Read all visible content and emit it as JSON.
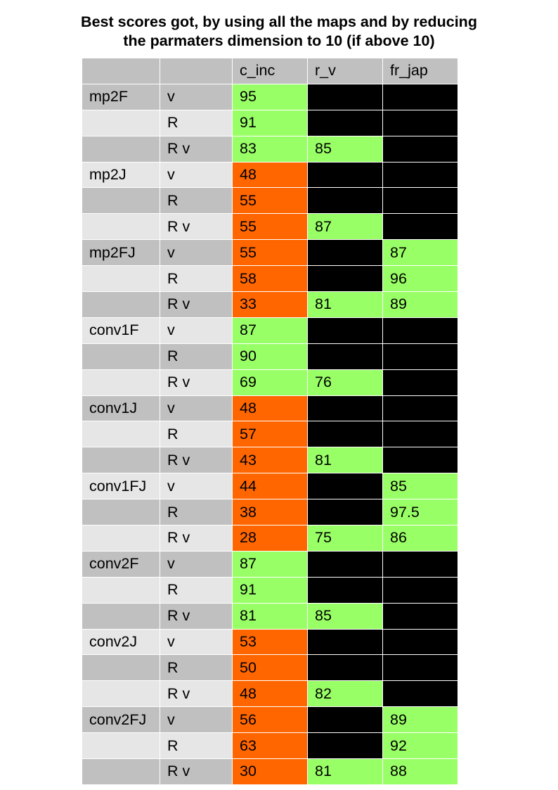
{
  "title": {
    "line1": "Best scores got, by using all the maps and by reducing",
    "line2": "the parmaters dimension to 10 (if above 10)"
  },
  "colors": {
    "header": "#c0c0c0",
    "row_dark": "#c0c0c0",
    "row_light": "#e6e6e6",
    "good": "#99ff66",
    "bad": "#ff6600",
    "na": "#000000"
  },
  "table": {
    "columns": [
      "",
      "",
      "c_inc",
      "r_v",
      "fr_jap"
    ],
    "rows": [
      {
        "model": "mp2F",
        "params": "v",
        "c_inc": {
          "value": "95",
          "color": "green"
        },
        "r_v": {
          "value": "",
          "color": "black"
        },
        "fr_jap": {
          "value": "",
          "color": "black"
        }
      },
      {
        "model": "",
        "params": "R",
        "c_inc": {
          "value": "91",
          "color": "green"
        },
        "r_v": {
          "value": "",
          "color": "black"
        },
        "fr_jap": {
          "value": "",
          "color": "black"
        }
      },
      {
        "model": "",
        "params": "R v",
        "c_inc": {
          "value": "83",
          "color": "green"
        },
        "r_v": {
          "value": "85",
          "color": "green"
        },
        "fr_jap": {
          "value": "",
          "color": "black"
        }
      },
      {
        "model": "mp2J",
        "params": "v",
        "c_inc": {
          "value": "48",
          "color": "orange"
        },
        "r_v": {
          "value": "",
          "color": "black"
        },
        "fr_jap": {
          "value": "",
          "color": "black"
        }
      },
      {
        "model": "",
        "params": "R",
        "c_inc": {
          "value": "55",
          "color": "orange"
        },
        "r_v": {
          "value": "",
          "color": "black"
        },
        "fr_jap": {
          "value": "",
          "color": "black"
        }
      },
      {
        "model": "",
        "params": "R v",
        "c_inc": {
          "value": "55",
          "color": "orange"
        },
        "r_v": {
          "value": "87",
          "color": "green"
        },
        "fr_jap": {
          "value": "",
          "color": "black"
        }
      },
      {
        "model": "mp2FJ",
        "params": "v",
        "c_inc": {
          "value": "55",
          "color": "orange"
        },
        "r_v": {
          "value": "",
          "color": "black"
        },
        "fr_jap": {
          "value": "87",
          "color": "green"
        }
      },
      {
        "model": "",
        "params": "R",
        "c_inc": {
          "value": "58",
          "color": "orange"
        },
        "r_v": {
          "value": "",
          "color": "black"
        },
        "fr_jap": {
          "value": "96",
          "color": "green"
        }
      },
      {
        "model": "",
        "params": "R v",
        "c_inc": {
          "value": "33",
          "color": "orange"
        },
        "r_v": {
          "value": "81",
          "color": "green"
        },
        "fr_jap": {
          "value": "89",
          "color": "green"
        }
      },
      {
        "model": "conv1F",
        "params": "v",
        "c_inc": {
          "value": "87",
          "color": "green"
        },
        "r_v": {
          "value": "",
          "color": "black"
        },
        "fr_jap": {
          "value": "",
          "color": "black"
        }
      },
      {
        "model": "",
        "params": "R",
        "c_inc": {
          "value": "90",
          "color": "green"
        },
        "r_v": {
          "value": "",
          "color": "black"
        },
        "fr_jap": {
          "value": "",
          "color": "black"
        }
      },
      {
        "model": "",
        "params": "R v",
        "c_inc": {
          "value": "69",
          "color": "green"
        },
        "r_v": {
          "value": "76",
          "color": "green"
        },
        "fr_jap": {
          "value": "",
          "color": "black"
        }
      },
      {
        "model": "conv1J",
        "params": "v",
        "c_inc": {
          "value": "48",
          "color": "orange"
        },
        "r_v": {
          "value": "",
          "color": "black"
        },
        "fr_jap": {
          "value": "",
          "color": "black"
        }
      },
      {
        "model": "",
        "params": "R",
        "c_inc": {
          "value": "57",
          "color": "orange"
        },
        "r_v": {
          "value": "",
          "color": "black"
        },
        "fr_jap": {
          "value": "",
          "color": "black"
        }
      },
      {
        "model": "",
        "params": "R v",
        "c_inc": {
          "value": "43",
          "color": "orange"
        },
        "r_v": {
          "value": "81",
          "color": "green"
        },
        "fr_jap": {
          "value": "",
          "color": "black"
        }
      },
      {
        "model": "conv1FJ",
        "params": "v",
        "c_inc": {
          "value": "44",
          "color": "orange"
        },
        "r_v": {
          "value": "",
          "color": "black"
        },
        "fr_jap": {
          "value": "85",
          "color": "green"
        }
      },
      {
        "model": "",
        "params": "R",
        "c_inc": {
          "value": "38",
          "color": "orange"
        },
        "r_v": {
          "value": "",
          "color": "black"
        },
        "fr_jap": {
          "value": "97.5",
          "color": "green"
        }
      },
      {
        "model": "",
        "params": "R v",
        "c_inc": {
          "value": "28",
          "color": "orange"
        },
        "r_v": {
          "value": "75",
          "color": "green"
        },
        "fr_jap": {
          "value": "86",
          "color": "green"
        }
      },
      {
        "model": "conv2F",
        "params": "v",
        "c_inc": {
          "value": "87",
          "color": "green"
        },
        "r_v": {
          "value": "",
          "color": "black"
        },
        "fr_jap": {
          "value": "",
          "color": "black"
        }
      },
      {
        "model": "",
        "params": "R",
        "c_inc": {
          "value": "91",
          "color": "green"
        },
        "r_v": {
          "value": "",
          "color": "black"
        },
        "fr_jap": {
          "value": "",
          "color": "black"
        }
      },
      {
        "model": "",
        "params": "R v",
        "c_inc": {
          "value": "81",
          "color": "green"
        },
        "r_v": {
          "value": "85",
          "color": "green"
        },
        "fr_jap": {
          "value": "",
          "color": "black"
        }
      },
      {
        "model": "conv2J",
        "params": "v",
        "c_inc": {
          "value": "53",
          "color": "orange"
        },
        "r_v": {
          "value": "",
          "color": "black"
        },
        "fr_jap": {
          "value": "",
          "color": "black"
        }
      },
      {
        "model": "",
        "params": "R",
        "c_inc": {
          "value": "50",
          "color": "orange"
        },
        "r_v": {
          "value": "",
          "color": "black"
        },
        "fr_jap": {
          "value": "",
          "color": "black"
        }
      },
      {
        "model": "",
        "params": "R v",
        "c_inc": {
          "value": "48",
          "color": "orange"
        },
        "r_v": {
          "value": "82",
          "color": "green"
        },
        "fr_jap": {
          "value": "",
          "color": "black"
        }
      },
      {
        "model": "conv2FJ",
        "params": "v",
        "c_inc": {
          "value": "56",
          "color": "orange"
        },
        "r_v": {
          "value": "",
          "color": "black"
        },
        "fr_jap": {
          "value": "89",
          "color": "green"
        }
      },
      {
        "model": "",
        "params": "R",
        "c_inc": {
          "value": "63",
          "color": "orange"
        },
        "r_v": {
          "value": "",
          "color": "black"
        },
        "fr_jap": {
          "value": "92",
          "color": "green"
        }
      },
      {
        "model": "",
        "params": "R v",
        "c_inc": {
          "value": "30",
          "color": "orange"
        },
        "r_v": {
          "value": "81",
          "color": "green"
        },
        "fr_jap": {
          "value": "88",
          "color": "green"
        }
      }
    ]
  }
}
